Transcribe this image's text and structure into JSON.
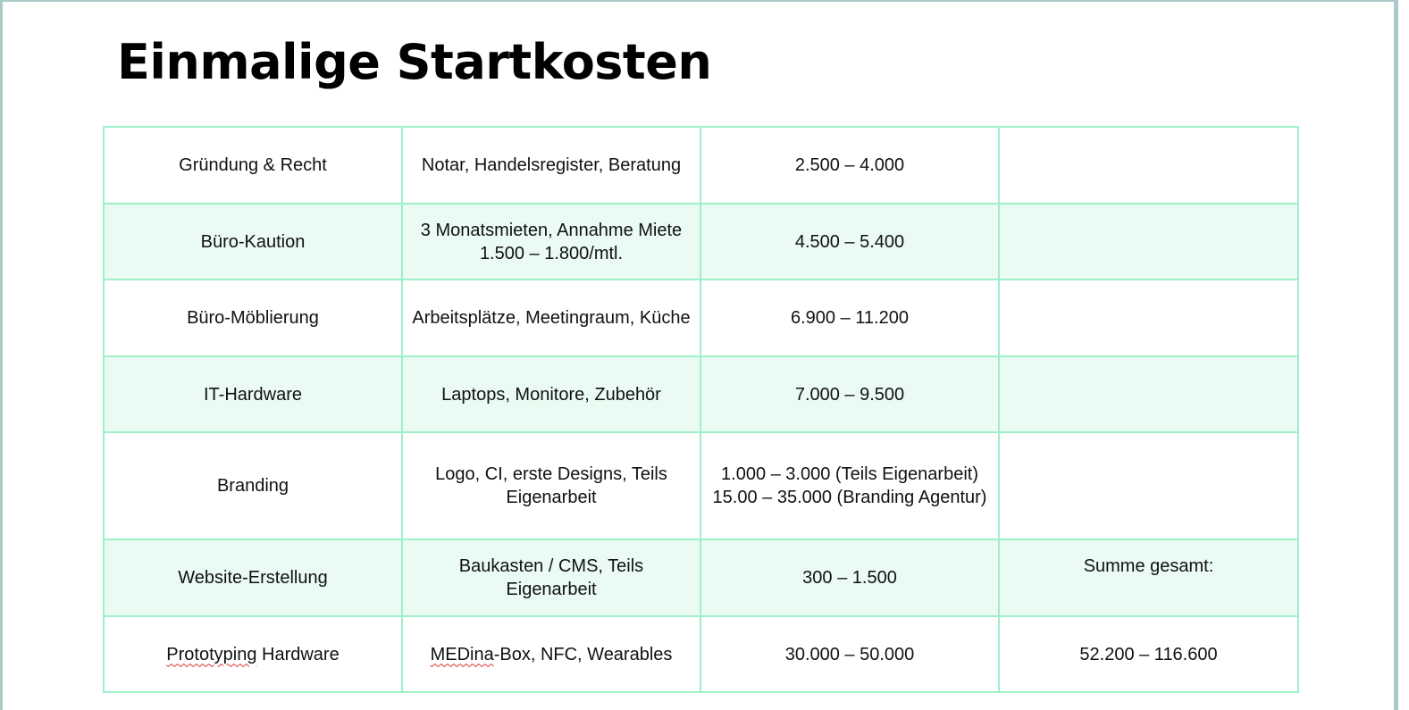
{
  "title": "Einmalige Startkosten",
  "rows": [
    {
      "item": "Gründung & Recht",
      "desc": "Notar, Handelsregister, Beratung",
      "cost": "2.500 – 4.000",
      "extra": ""
    },
    {
      "item": "Büro-Kaution",
      "desc": "3 Monatsmieten, Annahme Miete 1.500 – 1.800/mtl.",
      "cost": "4.500 – 5.400",
      "extra": ""
    },
    {
      "item": "Büro-Möblierung",
      "desc": "Arbeitsplätze, Meetingraum, Küche",
      "cost": "6.900 – 11.200",
      "extra": ""
    },
    {
      "item": "IT-Hardware",
      "desc": "Laptops, Monitore, Zubehör",
      "cost": "7.000 – 9.500",
      "extra": ""
    },
    {
      "item": "Branding",
      "desc": "Logo, CI, erste Designs, Teils Eigenarbeit",
      "cost": "1.000 – 3.000 (Teils Eigenarbeit)",
      "cost2": "15.00 – 35.000 (Branding Agentur)",
      "extra": ""
    },
    {
      "item": "Website-Erstellung",
      "desc": "Baukasten / CMS, Teils Eigenarbeit",
      "cost": "300 – 1.500",
      "extra": "Summe gesamt:"
    },
    {
      "item_a": "Prototyping",
      "item_b": " Hardware",
      "desc_a": "MEDina",
      "desc_b": "-Box, NFC, Wearables",
      "cost": "30.000 – 50.000",
      "extra": "52.200 – 116.600"
    }
  ],
  "colors": {
    "border": "#9ef0c8",
    "alt_row": "#e9fbf2",
    "frame": "#a9cbc8"
  }
}
